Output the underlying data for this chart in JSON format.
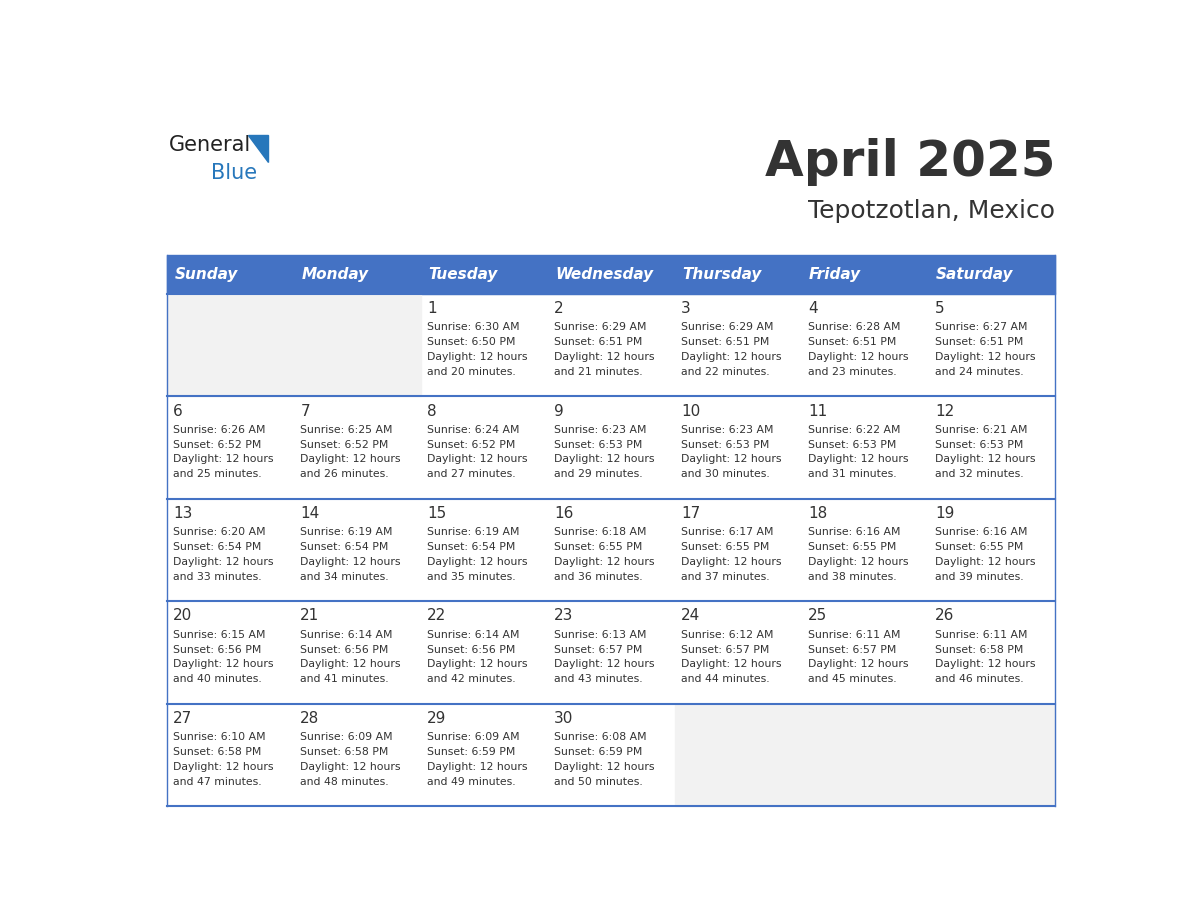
{
  "title": "April 2025",
  "subtitle": "Tepotzotlan, Mexico",
  "header_bg": "#4472C4",
  "header_text_color": "#FFFFFF",
  "day_names": [
    "Sunday",
    "Monday",
    "Tuesday",
    "Wednesday",
    "Thursday",
    "Friday",
    "Saturday"
  ],
  "bg_color": "#FFFFFF",
  "row_alt_color": "#F2F2F2",
  "cell_border_color": "#4472C4",
  "text_color": "#333333",
  "calendar": [
    [
      {
        "day": null,
        "sunrise": null,
        "sunset": null,
        "daylight_min": null
      },
      {
        "day": null,
        "sunrise": null,
        "sunset": null,
        "daylight_min": null
      },
      {
        "day": 1,
        "sunrise": "6:30 AM",
        "sunset": "6:50 PM",
        "daylight_min": 20
      },
      {
        "day": 2,
        "sunrise": "6:29 AM",
        "sunset": "6:51 PM",
        "daylight_min": 21
      },
      {
        "day": 3,
        "sunrise": "6:29 AM",
        "sunset": "6:51 PM",
        "daylight_min": 22
      },
      {
        "day": 4,
        "sunrise": "6:28 AM",
        "sunset": "6:51 PM",
        "daylight_min": 23
      },
      {
        "day": 5,
        "sunrise": "6:27 AM",
        "sunset": "6:51 PM",
        "daylight_min": 24
      }
    ],
    [
      {
        "day": 6,
        "sunrise": "6:26 AM",
        "sunset": "6:52 PM",
        "daylight_min": 25
      },
      {
        "day": 7,
        "sunrise": "6:25 AM",
        "sunset": "6:52 PM",
        "daylight_min": 26
      },
      {
        "day": 8,
        "sunrise": "6:24 AM",
        "sunset": "6:52 PM",
        "daylight_min": 27
      },
      {
        "day": 9,
        "sunrise": "6:23 AM",
        "sunset": "6:53 PM",
        "daylight_min": 29
      },
      {
        "day": 10,
        "sunrise": "6:23 AM",
        "sunset": "6:53 PM",
        "daylight_min": 30
      },
      {
        "day": 11,
        "sunrise": "6:22 AM",
        "sunset": "6:53 PM",
        "daylight_min": 31
      },
      {
        "day": 12,
        "sunrise": "6:21 AM",
        "sunset": "6:53 PM",
        "daylight_min": 32
      }
    ],
    [
      {
        "day": 13,
        "sunrise": "6:20 AM",
        "sunset": "6:54 PM",
        "daylight_min": 33
      },
      {
        "day": 14,
        "sunrise": "6:19 AM",
        "sunset": "6:54 PM",
        "daylight_min": 34
      },
      {
        "day": 15,
        "sunrise": "6:19 AM",
        "sunset": "6:54 PM",
        "daylight_min": 35
      },
      {
        "day": 16,
        "sunrise": "6:18 AM",
        "sunset": "6:55 PM",
        "daylight_min": 36
      },
      {
        "day": 17,
        "sunrise": "6:17 AM",
        "sunset": "6:55 PM",
        "daylight_min": 37
      },
      {
        "day": 18,
        "sunrise": "6:16 AM",
        "sunset": "6:55 PM",
        "daylight_min": 38
      },
      {
        "day": 19,
        "sunrise": "6:16 AM",
        "sunset": "6:55 PM",
        "daylight_min": 39
      }
    ],
    [
      {
        "day": 20,
        "sunrise": "6:15 AM",
        "sunset": "6:56 PM",
        "daylight_min": 40
      },
      {
        "day": 21,
        "sunrise": "6:14 AM",
        "sunset": "6:56 PM",
        "daylight_min": 41
      },
      {
        "day": 22,
        "sunrise": "6:14 AM",
        "sunset": "6:56 PM",
        "daylight_min": 42
      },
      {
        "day": 23,
        "sunrise": "6:13 AM",
        "sunset": "6:57 PM",
        "daylight_min": 43
      },
      {
        "day": 24,
        "sunrise": "6:12 AM",
        "sunset": "6:57 PM",
        "daylight_min": 44
      },
      {
        "day": 25,
        "sunrise": "6:11 AM",
        "sunset": "6:57 PM",
        "daylight_min": 45
      },
      {
        "day": 26,
        "sunrise": "6:11 AM",
        "sunset": "6:58 PM",
        "daylight_min": 46
      }
    ],
    [
      {
        "day": 27,
        "sunrise": "6:10 AM",
        "sunset": "6:58 PM",
        "daylight_min": 47
      },
      {
        "day": 28,
        "sunrise": "6:09 AM",
        "sunset": "6:58 PM",
        "daylight_min": 48
      },
      {
        "day": 29,
        "sunrise": "6:09 AM",
        "sunset": "6:59 PM",
        "daylight_min": 49
      },
      {
        "day": 30,
        "sunrise": "6:08 AM",
        "sunset": "6:59 PM",
        "daylight_min": 50
      },
      {
        "day": null,
        "sunrise": null,
        "sunset": null,
        "daylight_min": null
      },
      {
        "day": null,
        "sunrise": null,
        "sunset": null,
        "daylight_min": null
      },
      {
        "day": null,
        "sunrise": null,
        "sunset": null,
        "daylight_min": null
      }
    ]
  ],
  "logo_general_color": "#222222",
  "logo_blue_color": "#2777BB",
  "logo_triangle_color": "#2777BB"
}
